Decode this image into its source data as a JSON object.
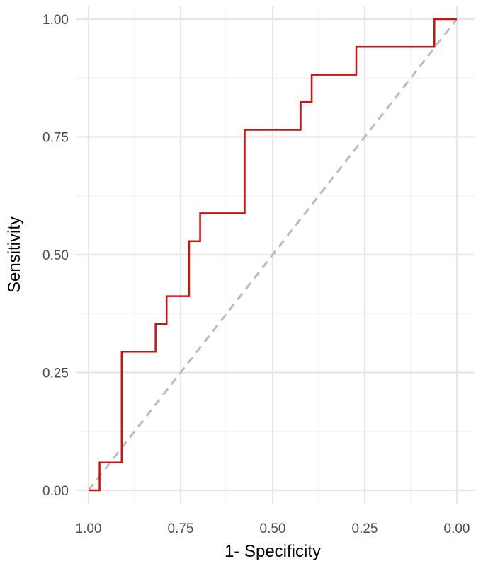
{
  "chart_data": {
    "type": "line",
    "xlabel": "1- Specificity",
    "ylabel": "Sensitivity",
    "x_reversed": true,
    "xlim": [
      1.0,
      0.0
    ],
    "ylim": [
      0.0,
      1.0
    ],
    "x_ticks": [
      1.0,
      0.75,
      0.5,
      0.25,
      0.0
    ],
    "x_tick_labels": [
      "1.00",
      "0.75",
      "0.50",
      "0.25",
      "0.00"
    ],
    "y_ticks": [
      0.0,
      0.25,
      0.5,
      0.75,
      1.0
    ],
    "y_tick_labels": [
      "0.00",
      "0.25",
      "0.50",
      "0.75",
      "1.00"
    ],
    "grid": true,
    "series": [
      {
        "kind": "step",
        "color": "#cc1111",
        "points": [
          [
            1.0,
            0.0
          ],
          [
            0.97,
            0.0
          ],
          [
            0.97,
            0.059
          ],
          [
            0.91,
            0.059
          ],
          [
            0.91,
            0.294
          ],
          [
            0.818,
            0.294
          ],
          [
            0.818,
            0.353
          ],
          [
            0.788,
            0.353
          ],
          [
            0.788,
            0.412
          ],
          [
            0.727,
            0.412
          ],
          [
            0.727,
            0.529
          ],
          [
            0.697,
            0.529
          ],
          [
            0.697,
            0.588
          ],
          [
            0.576,
            0.588
          ],
          [
            0.576,
            0.765
          ],
          [
            0.424,
            0.765
          ],
          [
            0.424,
            0.824
          ],
          [
            0.394,
            0.824
          ],
          [
            0.394,
            0.882
          ],
          [
            0.273,
            0.882
          ],
          [
            0.273,
            0.941
          ],
          [
            0.061,
            0.941
          ],
          [
            0.061,
            1.0
          ],
          [
            0.0,
            1.0
          ]
        ]
      },
      {
        "kind": "reference",
        "color": "#bbbbbb",
        "dashed": true,
        "points": [
          [
            1.0,
            0.0
          ],
          [
            0.0,
            1.0
          ]
        ]
      }
    ]
  }
}
